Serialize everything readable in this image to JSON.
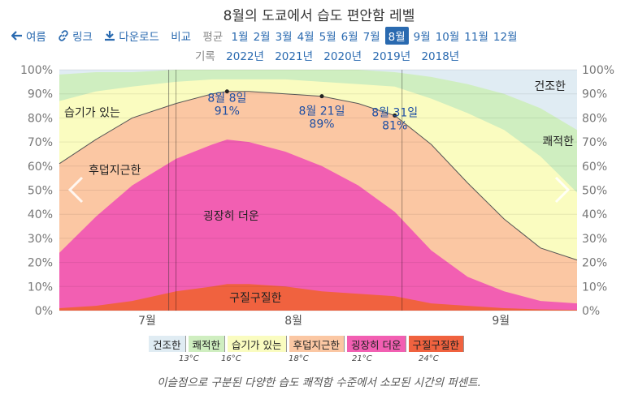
{
  "title": "8월의 도쿄에서 습도 편안함 레벨",
  "toolbar": {
    "back_label": "여름",
    "link_label": "링크",
    "download_label": "다운로드",
    "compare_label": "비교",
    "average_label": "평균",
    "months": [
      "1월",
      "2월",
      "3월",
      "4월",
      "5월",
      "6월",
      "7월",
      "8월",
      "9월",
      "10월",
      "11월",
      "12월"
    ],
    "selected_month": "8월"
  },
  "history": {
    "label": "기록",
    "years": [
      "2022년",
      "2021년",
      "2020년",
      "2019년",
      "2018년"
    ]
  },
  "legend": {
    "items": [
      "건조한",
      "쾌적한",
      "습기가 있는",
      "후덥지근한",
      "굉장히 더운",
      "구질구질한"
    ],
    "colors": [
      "#e0ecf3",
      "#cfeec0",
      "#fafcc0",
      "#fbc7a3",
      "#f25fb2",
      "#f0623f"
    ],
    "thresholds": [
      "13°C",
      "16°C",
      "18°C",
      "21°C",
      "24°C"
    ]
  },
  "caption": "이슬점으로 구분된 다양한 습도 쾌적함 수준에서 소모된 시간의 퍼센트.",
  "chart_data": {
    "type": "area",
    "x_unit": "day",
    "x_tick_labels": [
      "7월",
      "8월",
      "9월"
    ],
    "ylim": [
      0,
      100
    ],
    "y_tick_labels": [
      "0%",
      "10%",
      "20%",
      "30%",
      "40%",
      "50%",
      "60%",
      "70%",
      "80%",
      "90%",
      "100%"
    ],
    "x": [
      "07-16",
      "07-21",
      "07-26",
      "08-01",
      "08-06",
      "08-08",
      "08-11",
      "08-16",
      "08-21",
      "08-26",
      "08-31",
      "09-05",
      "09-10",
      "09-15",
      "09-20",
      "09-25"
    ],
    "series": [
      {
        "name": "구질구질한",
        "values": [
          1,
          2,
          4,
          8,
          10,
          11,
          11,
          10,
          8,
          7,
          6,
          3,
          2,
          1,
          0.5,
          0.3
        ]
      },
      {
        "name": "굉장히 더운",
        "values": [
          24,
          39,
          52,
          63,
          69,
          71,
          70,
          66,
          60,
          52,
          41,
          25,
          14,
          8,
          4,
          3
        ]
      },
      {
        "name": "후덥지근한",
        "values": [
          61,
          71,
          80,
          86,
          90,
          91,
          91,
          90,
          89,
          86,
          81,
          69,
          53,
          38,
          26,
          21
        ]
      },
      {
        "name": "습기가 있는",
        "values": [
          87,
          91,
          93,
          95,
          96,
          96,
          96,
          96,
          95,
          94,
          93,
          88,
          82,
          75,
          64,
          49
        ]
      },
      {
        "name": "쾌적한",
        "values": [
          98,
          99,
          99,
          100,
          100,
          100,
          100,
          100,
          100,
          100,
          99,
          97,
          94,
          90,
          84,
          75
        ]
      }
    ],
    "band_labels": [
      "구질구질한",
      "굉장히 더운",
      "후덥지근한",
      "습기가 있는",
      "쾌적한",
      "건조한"
    ],
    "annotations": [
      {
        "date": "8월 8일",
        "value": "91%",
        "x": "08-08",
        "y": 91
      },
      {
        "date": "8월 21일",
        "value": "89%",
        "x": "08-21",
        "y": 89
      },
      {
        "date": "8월 31일",
        "value": "81%",
        "x": "08-31",
        "y": 81
      }
    ],
    "grid": true
  }
}
